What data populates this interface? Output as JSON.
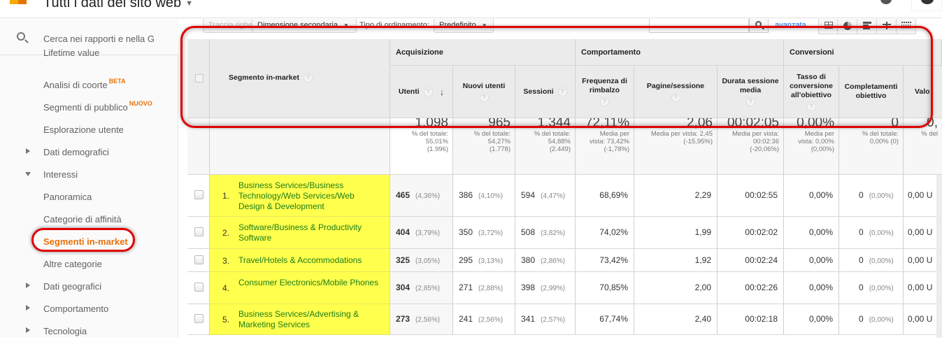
{
  "header": {
    "title": "Tutti i dati del sito web",
    "icons": [
      "notifications-icon",
      "help-icon",
      "account-avatar"
    ]
  },
  "sidebar": {
    "search_placeholder": "Cerca nei rapporti e nella G",
    "items": [
      {
        "label": "Lifetime value",
        "indent": 1,
        "arrow": null,
        "clipped": true
      },
      {
        "label": "Analisi di coorte",
        "badge": "BETA",
        "indent": 1,
        "arrow": null
      },
      {
        "label": "Segmenti di pubblico",
        "badge": "NUOVO",
        "indent": 1,
        "arrow": null
      },
      {
        "label": "Esplorazione utente",
        "indent": 1,
        "arrow": null
      },
      {
        "label": "Dati demografici",
        "indent": 0,
        "arrow": "right"
      },
      {
        "label": "Interessi",
        "indent": 0,
        "arrow": "down"
      },
      {
        "label": "Panoramica",
        "indent": 1,
        "arrow": null
      },
      {
        "label": "Categorie di affinità",
        "indent": 1,
        "arrow": null
      },
      {
        "label": "Segmenti in-market",
        "indent": 1,
        "arrow": null,
        "active": true
      },
      {
        "label": "Altre categorie",
        "indent": 1,
        "arrow": null
      },
      {
        "label": "Dati geografici",
        "indent": 0,
        "arrow": "right"
      },
      {
        "label": "Comportamento",
        "indent": 0,
        "arrow": "right"
      },
      {
        "label": "Tecnologia",
        "indent": 0,
        "arrow": "right"
      }
    ]
  },
  "toolbar": {
    "plot_rows": "Traccia righe",
    "secondary_dimension": "Dimensione secondaria",
    "sort_type_label": "Tipo di ordinamento:",
    "sort_type_value": "Predefinito",
    "search_value": "",
    "advanced_link": "avanzata",
    "views": [
      "table-view-icon",
      "pie-view-icon",
      "performance-view-icon",
      "comparison-view-icon",
      "pivot-view-icon"
    ]
  },
  "table": {
    "dimension_header": "Segmento in-market",
    "groups": [
      {
        "label": "Acquisizione"
      },
      {
        "label": "Comportamento"
      },
      {
        "label": "Conversioni"
      }
    ],
    "columns": [
      {
        "label": "Utenti",
        "sorted": true
      },
      {
        "label": "Nuovi utenti"
      },
      {
        "label": "Sessioni"
      },
      {
        "label": "Frequenza di rimbalzo"
      },
      {
        "label": "Pagine/sessione"
      },
      {
        "label": "Durata sessione media"
      },
      {
        "label": "Tasso di conversione all'obiettivo"
      },
      {
        "label": "Completamenti obiettivo"
      },
      {
        "label": "Valo"
      }
    ],
    "totals": [
      {
        "value": "1.098",
        "sub": "% del totale:\n55,01%\n(1.996)"
      },
      {
        "value": "965",
        "sub": "% del totale:\n54,27%\n(1.778)"
      },
      {
        "value": "1.344",
        "sub": "% del totale:\n54,88%\n(2.449)"
      },
      {
        "value": "72,11%",
        "sub": "Media per\nvista: 73,42%\n(-1,78%)"
      },
      {
        "value": "2,06",
        "sub": "Media per vista: 2,45\n(-15,95%)"
      },
      {
        "value": "00:02:05",
        "sub": "Media per vista:\n00:02:36\n(-20,06%)"
      },
      {
        "value": "0,00%",
        "sub": "Media per\nvista: 0,00%\n(0,00%)"
      },
      {
        "value": "0",
        "sub": "% del totale:\n0,00% (0)"
      },
      {
        "value": "0,",
        "sub": "% del"
      }
    ],
    "rows": [
      {
        "index": "1.",
        "segment": "Business Services/Business Technology/Web Services/Web Design & Development",
        "users": "465",
        "users_pct": "(4,36%)",
        "new_users": "386",
        "new_users_pct": "(4,10%)",
        "sessions": "594",
        "sessions_pct": "(4,47%)",
        "bounce_rate": "68,69%",
        "pages_per_session": "2,29",
        "avg_duration": "00:02:55",
        "conv_rate": "0,00%",
        "goal_completions": "0",
        "goal_completions_pct": "(0,00%)",
        "value": "0,00 U"
      },
      {
        "index": "2.",
        "segment": "Software/Business & Productivity Software",
        "users": "404",
        "users_pct": "(3,79%)",
        "new_users": "350",
        "new_users_pct": "(3,72%)",
        "sessions": "508",
        "sessions_pct": "(3,82%)",
        "bounce_rate": "74,02%",
        "pages_per_session": "1,99",
        "avg_duration": "00:02:02",
        "conv_rate": "0,00%",
        "goal_completions": "0",
        "goal_completions_pct": "(0,00%)",
        "value": "0,00 U"
      },
      {
        "index": "3.",
        "segment": "Travel/Hotels & Accommodations",
        "users": "325",
        "users_pct": "(3,05%)",
        "new_users": "295",
        "new_users_pct": "(3,13%)",
        "sessions": "380",
        "sessions_pct": "(2,86%)",
        "bounce_rate": "73,42%",
        "pages_per_session": "1,92",
        "avg_duration": "00:02:24",
        "conv_rate": "0,00%",
        "goal_completions": "0",
        "goal_completions_pct": "(0,00%)",
        "value": "0,00 U"
      },
      {
        "index": "4.",
        "segment": "Consumer Electronics/Mobile Phones",
        "users": "304",
        "users_pct": "(2,85%)",
        "new_users": "271",
        "new_users_pct": "(2,88%)",
        "sessions": "398",
        "sessions_pct": "(2,99%)",
        "bounce_rate": "70,85%",
        "pages_per_session": "2,00",
        "avg_duration": "00:02:26",
        "conv_rate": "0,00%",
        "goal_completions": "0",
        "goal_completions_pct": "(0,00%)",
        "value": "0,00 U"
      },
      {
        "index": "5.",
        "segment": "Business Services/Advertising & Marketing Services",
        "users": "273",
        "users_pct": "(2,56%)",
        "new_users": "241",
        "new_users_pct": "(2,56%)",
        "sessions": "341",
        "sessions_pct": "(2,57%)",
        "bounce_rate": "67,74%",
        "pages_per_session": "2,40",
        "avg_duration": "00:02:18",
        "conv_rate": "0,00%",
        "goal_completions": "0",
        "goal_completions_pct": "(0,00%)",
        "value": "0,00 U"
      }
    ]
  },
  "colors": {
    "accent_orange": "#e8710a",
    "segment_link_green": "#1e7d19",
    "highlight_yellow": "#ffff4d",
    "annotation_red": "#e00000"
  }
}
